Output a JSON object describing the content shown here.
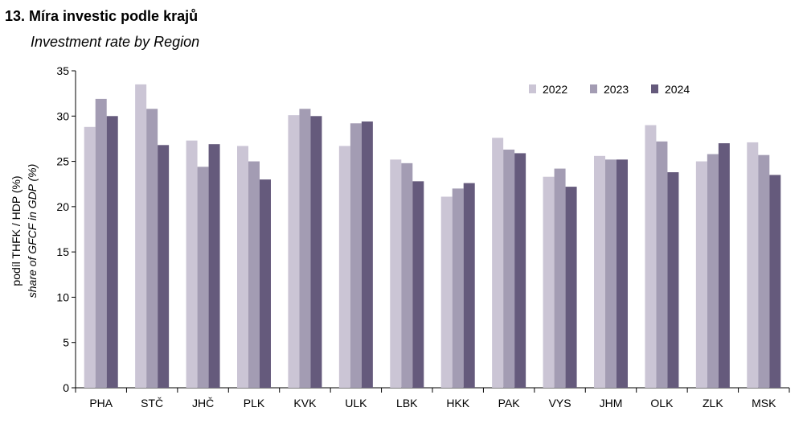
{
  "title": "13. Míra investic podle krajů",
  "subtitle": "Investment rate by Region",
  "chart_data": {
    "type": "bar",
    "categories": [
      "PHA",
      "STČ",
      "JHČ",
      "PLK",
      "KVK",
      "ULK",
      "LBK",
      "HKK",
      "PAK",
      "VYS",
      "JHM",
      "OLK",
      "ZLK",
      "MSK"
    ],
    "series": [
      {
        "name": "2022",
        "color": "#cbc5d5",
        "values": [
          28.8,
          33.5,
          27.3,
          26.7,
          30.1,
          26.7,
          25.2,
          21.1,
          27.6,
          23.3,
          25.6,
          29.0,
          25.0,
          27.1
        ]
      },
      {
        "name": "2023",
        "color": "#a39cb3",
        "values": [
          31.9,
          30.8,
          24.4,
          25.0,
          30.8,
          29.2,
          24.8,
          22.0,
          26.3,
          24.2,
          25.2,
          27.2,
          25.8,
          25.7
        ]
      },
      {
        "name": "2024",
        "color": "#655a7c",
        "values": [
          30.0,
          26.8,
          26.9,
          23.0,
          30.0,
          29.4,
          22.8,
          22.6,
          25.9,
          22.2,
          25.2,
          23.8,
          27.0,
          23.5
        ]
      }
    ],
    "ylabel_line1": "podíl THFK / HDP (%)",
    "ylabel_line2": "share of GFCF in GDP (%)",
    "ylim": [
      0,
      35
    ],
    "yticks": [
      0,
      5,
      10,
      15,
      20,
      25,
      30,
      35
    ],
    "grid": false,
    "legend_position": "top-right"
  }
}
